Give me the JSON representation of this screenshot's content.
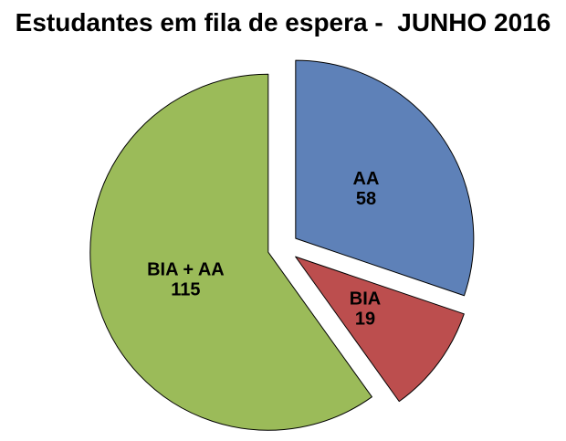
{
  "chart_data": {
    "type": "pie",
    "title": "Estudantes em fila de espera -  JUNHO 2016",
    "slices": [
      {
        "label": "AA",
        "value": 58,
        "color": "#5E81B8"
      },
      {
        "label": "BIA",
        "value": 19,
        "color": "#BC4E4E"
      },
      {
        "label": "BIA + AA",
        "value": 115,
        "color": "#9BBB59"
      }
    ],
    "start_angle_deg": 0,
    "direction": "clockwise",
    "exploded": true,
    "slice_outline_color": "#000000",
    "label_style": "label-and-value-inside",
    "legend": "none",
    "background_color": "#FFFFFF"
  }
}
